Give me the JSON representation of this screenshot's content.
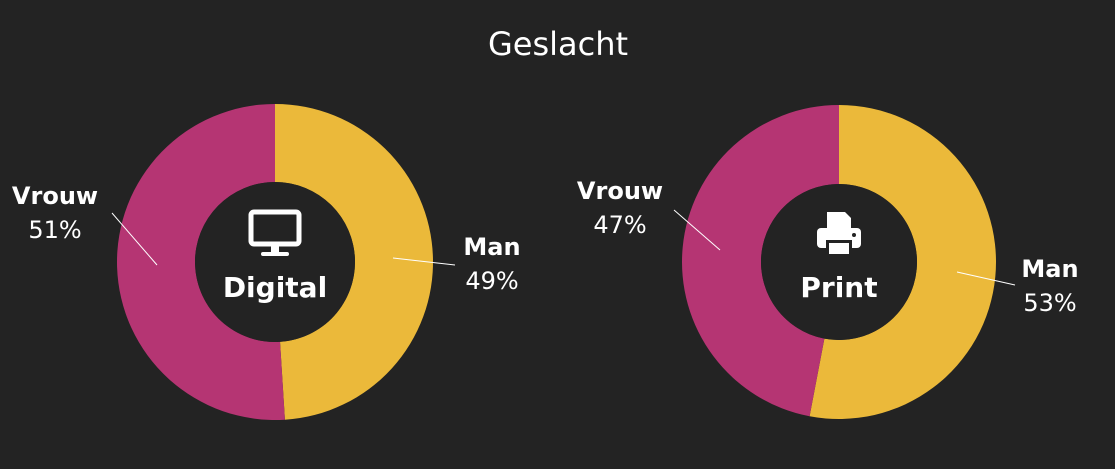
{
  "title": "Geslacht",
  "chart_data": [
    {
      "type": "donut",
      "title": "Digital",
      "categories": [
        "Man",
        "Vrouw"
      ],
      "values": [
        49,
        51
      ],
      "value_labels": [
        "49%",
        "51%"
      ],
      "colors": [
        "#ebb93a",
        "#b53573"
      ]
    },
    {
      "type": "donut",
      "title": "Print",
      "categories": [
        "Man",
        "Vrouw"
      ],
      "values": [
        53,
        47
      ],
      "value_labels": [
        "53%",
        "47%"
      ],
      "colors": [
        "#ebb93a",
        "#b53573"
      ]
    }
  ]
}
